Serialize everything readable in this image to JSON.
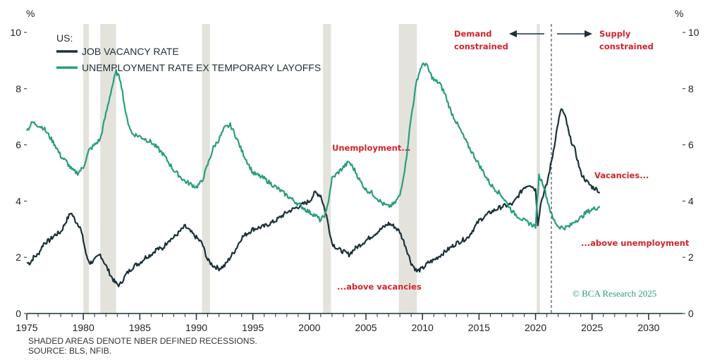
{
  "chart_data": {
    "type": "line",
    "title": "US:",
    "y_unit_left": "%",
    "y_unit_right": "%",
    "ylim": [
      0,
      10
    ],
    "xlim": [
      1975,
      2033
    ],
    "y_ticks": [
      0,
      2,
      4,
      6,
      8,
      10
    ],
    "x_ticks": [
      1975,
      1980,
      1985,
      1990,
      1995,
      2000,
      2005,
      2010,
      2015,
      2020,
      2025,
      2030
    ],
    "colors": {
      "vacancy": "#1b3138",
      "unemployment": "#2a9d7e",
      "recession": "#e3e3dc",
      "annotation": "#d2232a",
      "axis": "#1b3138"
    },
    "recessions": [
      [
        1980.0,
        1980.5
      ],
      [
        1981.5,
        1982.9
      ],
      [
        1990.5,
        1991.2
      ],
      [
        2001.2,
        2001.9
      ],
      [
        2007.9,
        2009.5
      ],
      [
        2020.1,
        2020.4
      ]
    ],
    "divider_year": 2021.4,
    "series": [
      {
        "name": "JOB VACANCY RATE",
        "key": "vacancy",
        "x": [
          1975.0,
          1975.3,
          1975.6,
          1976.0,
          1976.5,
          1977.0,
          1977.5,
          1978.0,
          1978.5,
          1978.9,
          1979.3,
          1979.7,
          1980.0,
          1980.3,
          1980.6,
          1981.0,
          1981.5,
          1982.0,
          1982.5,
          1982.8,
          1983.2,
          1983.8,
          1984.5,
          1985.0,
          1985.5,
          1986.0,
          1986.5,
          1987.0,
          1987.5,
          1988.0,
          1988.5,
          1989.0,
          1989.5,
          1990.0,
          1990.5,
          1991.0,
          1991.5,
          1992.0,
          1992.5,
          1993.0,
          1993.5,
          1994.0,
          1995.0,
          1996.0,
          1997.0,
          1998.0,
          1999.0,
          2000.0,
          2000.5,
          2001.0,
          2001.5,
          2002.0,
          2002.5,
          2003.0,
          2003.5,
          2004.0,
          2005.0,
          2006.0,
          2007.0,
          2007.5,
          2008.0,
          2008.5,
          2009.0,
          2009.5,
          2010.0,
          2010.5,
          2011.0,
          2012.0,
          2013.0,
          2014.0,
          2015.0,
          2016.0,
          2017.0,
          2018.0,
          2018.5,
          2019.0,
          2019.5,
          2020.0,
          2020.2,
          2020.5,
          2021.0,
          2021.5,
          2022.0,
          2022.3,
          2022.7,
          2023.0,
          2023.5,
          2024.0,
          2024.5,
          2025.0,
          2025.5,
          2025.7
        ],
        "values": [
          1.8,
          1.8,
          2.0,
          2.1,
          2.5,
          2.6,
          2.8,
          2.9,
          3.3,
          3.6,
          3.3,
          3.1,
          2.6,
          2.0,
          1.8,
          1.9,
          2.1,
          1.7,
          1.3,
          1.1,
          1.0,
          1.4,
          1.7,
          1.8,
          2.0,
          2.1,
          2.3,
          2.3,
          2.6,
          2.7,
          2.9,
          3.1,
          2.9,
          2.7,
          2.5,
          1.9,
          1.7,
          1.6,
          1.7,
          2.0,
          2.3,
          2.7,
          3.0,
          3.1,
          3.3,
          3.6,
          3.8,
          4.0,
          4.3,
          4.2,
          3.5,
          2.5,
          2.3,
          2.2,
          2.1,
          2.3,
          2.6,
          2.9,
          3.2,
          3.1,
          2.9,
          2.4,
          1.8,
          1.5,
          1.6,
          1.8,
          1.9,
          2.2,
          2.5,
          2.7,
          3.3,
          3.6,
          3.8,
          3.9,
          4.2,
          4.5,
          4.6,
          4.4,
          3.2,
          4.0,
          4.6,
          5.6,
          6.8,
          7.3,
          6.9,
          6.3,
          5.8,
          5.0,
          4.7,
          4.5,
          4.4,
          4.3
        ]
      },
      {
        "name": "UNEMPLOYMENT RATE EX TEMPORARY LAYOFFS",
        "key": "unemployment",
        "x": [
          1975.0,
          1975.5,
          1976.0,
          1976.5,
          1977.0,
          1977.5,
          1978.0,
          1978.5,
          1979.0,
          1979.5,
          1980.0,
          1980.5,
          1981.0,
          1981.5,
          1982.0,
          1982.5,
          1982.9,
          1983.3,
          1983.8,
          1984.3,
          1985.0,
          1986.0,
          1987.0,
          1988.0,
          1988.5,
          1989.0,
          1989.5,
          1990.0,
          1990.5,
          1991.0,
          1991.5,
          1992.0,
          1992.5,
          1993.0,
          1993.5,
          1994.0,
          1995.0,
          1996.0,
          1997.0,
          1998.0,
          1999.0,
          2000.0,
          2000.5,
          2001.0,
          2001.5,
          2002.0,
          2002.5,
          2003.0,
          2003.5,
          2004.0,
          2004.5,
          2005.0,
          2005.5,
          2006.0,
          2006.5,
          2007.0,
          2007.5,
          2008.0,
          2008.5,
          2009.0,
          2009.5,
          2009.9,
          2010.3,
          2010.6,
          2011.0,
          2011.5,
          2012.0,
          2012.5,
          2013.0,
          2014.0,
          2015.0,
          2016.0,
          2017.0,
          2018.0,
          2019.0,
          2020.0,
          2020.3,
          2020.7,
          2021.0,
          2021.5,
          2022.0,
          2022.5,
          2023.0,
          2023.5,
          2024.0,
          2024.5,
          2025.0,
          2025.7
        ],
        "values": [
          6.5,
          6.8,
          6.7,
          6.6,
          6.3,
          6.0,
          5.6,
          5.4,
          5.1,
          5.0,
          5.2,
          5.8,
          6.0,
          6.2,
          7.1,
          8.0,
          8.6,
          8.3,
          7.0,
          6.4,
          6.3,
          6.1,
          5.7,
          5.1,
          4.9,
          4.7,
          4.6,
          4.5,
          4.7,
          5.3,
          5.9,
          6.2,
          6.6,
          6.7,
          6.3,
          5.8,
          5.0,
          4.8,
          4.5,
          4.2,
          3.9,
          3.6,
          3.5,
          3.3,
          3.6,
          4.8,
          5.0,
          5.2,
          5.4,
          5.1,
          4.7,
          4.4,
          4.3,
          4.1,
          3.9,
          3.8,
          3.9,
          4.2,
          5.3,
          7.0,
          8.3,
          8.8,
          8.9,
          8.6,
          8.3,
          8.2,
          7.8,
          7.2,
          6.8,
          6.0,
          5.3,
          4.6,
          4.2,
          3.6,
          3.3,
          3.1,
          4.9,
          4.6,
          4.1,
          3.4,
          3.1,
          3.05,
          3.1,
          3.3,
          3.4,
          3.6,
          3.7,
          3.8
        ]
      }
    ]
  },
  "legend": {
    "title": "US:",
    "vacancy_label": "JOB VACANCY RATE",
    "unemployment_label": "UNEMPLOYMENT RATE EX TEMPORARY LAYOFFS"
  },
  "annotations": {
    "demand_line1": "Demand",
    "demand_line2": "constrained",
    "supply_line1": "Supply",
    "supply_line2": "constrained",
    "unemployment": "Unemployment...",
    "above_vacancies": "...above vacancies",
    "vacancies": "Vacancies...",
    "above_unemployment": "...above unemployment"
  },
  "footnotes": {
    "line1": "SHADED AREAS DENOTE NBER DEFINED RECESSIONS.",
    "line2": "SOURCE: BLS, NFIB."
  },
  "brand": "© BCA Research 2025"
}
